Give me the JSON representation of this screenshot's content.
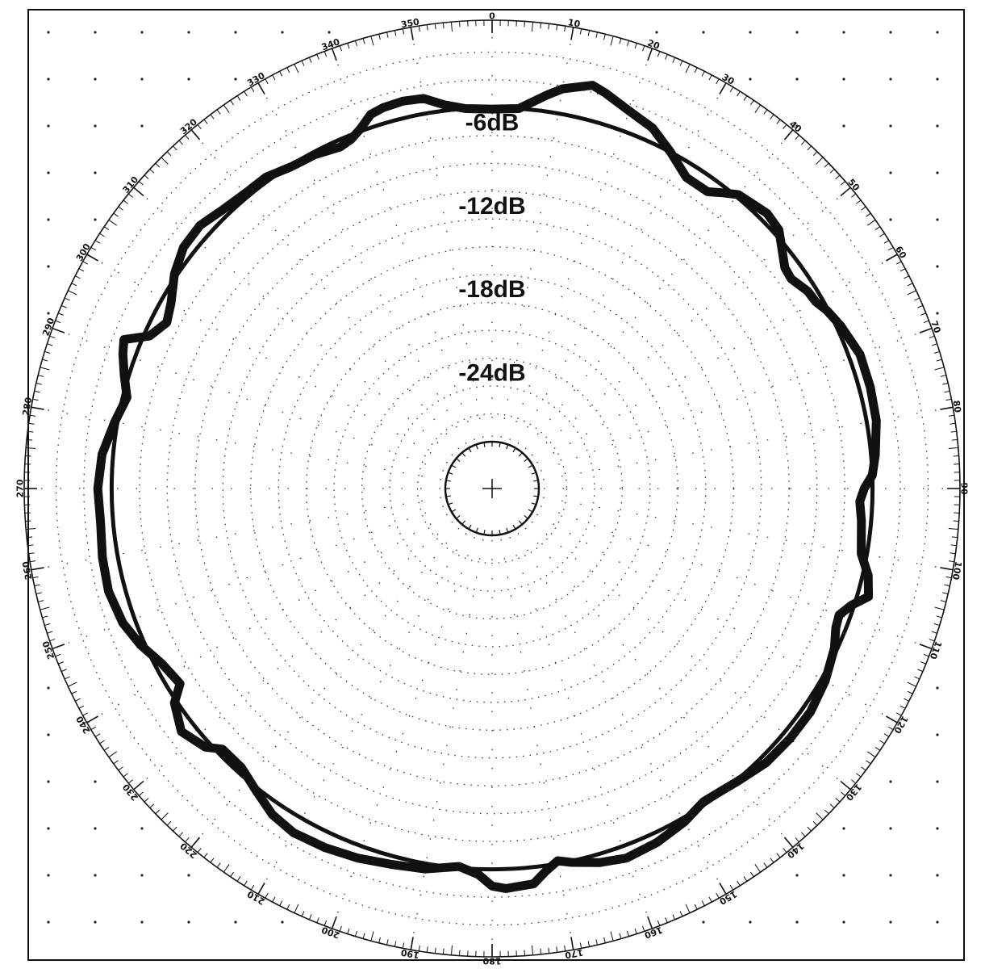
{
  "chart_data": {
    "type": "polar-line",
    "title": "",
    "angle_unit": "degrees",
    "angle_zero": "top",
    "angle_direction": "clockwise",
    "angle_tick_labels": [
      "0",
      "10",
      "20",
      "30",
      "40",
      "50",
      "60",
      "70",
      "80",
      "90",
      "100",
      "110",
      "120",
      "130",
      "140",
      "150",
      "160",
      "170",
      "180",
      "190",
      "200",
      "210",
      "220",
      "230",
      "240",
      "250",
      "260",
      "270",
      "280",
      "290",
      "300",
      "310",
      "320",
      "330",
      "340",
      "350"
    ],
    "ring_labels": [
      "-6dB",
      "-12dB",
      "-18dB",
      "-24dB"
    ],
    "rlim": [
      -30,
      0
    ],
    "reference_circle_db": -6,
    "grid": true,
    "series": [
      {
        "color": "#111111",
        "angles": [
          0,
          4,
          8,
          10,
          14,
          16,
          20,
          24,
          28,
          32,
          36,
          38,
          40,
          45,
          48,
          50,
          53,
          55,
          58,
          60,
          62,
          65,
          70,
          75,
          80,
          85,
          88,
          90,
          92,
          95,
          100,
          103,
          106,
          108,
          110,
          112,
          115,
          120,
          125,
          130,
          135,
          140,
          143,
          146,
          150,
          155,
          160,
          164,
          168,
          170,
          172,
          174,
          178,
          180,
          182,
          185,
          190,
          195,
          200,
          205,
          210,
          214,
          218,
          222,
          226,
          228,
          232,
          236,
          238,
          242,
          246,
          250,
          255,
          260,
          265,
          270,
          275,
          280,
          284,
          287,
          290,
          292,
          294,
          297,
          300,
          304,
          308,
          312,
          316,
          320,
          324,
          328,
          332,
          336,
          338,
          340,
          342,
          344,
          347,
          350,
          353,
          356
        ],
        "values": [
          -6.1,
          -6,
          -4.8,
          -4.2,
          -3.5,
          -3.8,
          -4.5,
          -5,
          -6,
          -7,
          -7,
          -6.4,
          -5.8,
          -5.4,
          -5.6,
          -6.2,
          -7,
          -7.1,
          -6.6,
          -6.5,
          -6.1,
          -5.7,
          -5.2,
          -5.2,
          -5.3,
          -5.7,
          -6,
          -6.6,
          -6.9,
          -6.7,
          -6.4,
          -5.6,
          -5.2,
          -6.2,
          -6.8,
          -6.7,
          -6.2,
          -5.7,
          -5.4,
          -5.4,
          -5.5,
          -5.9,
          -6.1,
          -6.2,
          -5.7,
          -5.3,
          -5.1,
          -5.4,
          -5.9,
          -6.2,
          -5.6,
          -4.8,
          -4.6,
          -4.8,
          -5.6,
          -6.1,
          -5.6,
          -5.4,
          -5.1,
          -4.9,
          -4.8,
          -5.1,
          -5.8,
          -6.4,
          -6.4,
          -5.6,
          -5,
          -5.8,
          -6.9,
          -6.5,
          -5.7,
          -5.1,
          -4.8,
          -4.9,
          -5.1,
          -5,
          -5.2,
          -5.8,
          -6.3,
          -5.7,
          -5.1,
          -4.8,
          -6.4,
          -7.1,
          -6.7,
          -5.8,
          -5.2,
          -5.1,
          -5.5,
          -5.7,
          -5.7,
          -6.1,
          -6.2,
          -6.5,
          -6.3,
          -5.8,
          -5.1,
          -4.9,
          -4.8,
          -4.9,
          -5.6,
          -6
        ]
      }
    ]
  }
}
